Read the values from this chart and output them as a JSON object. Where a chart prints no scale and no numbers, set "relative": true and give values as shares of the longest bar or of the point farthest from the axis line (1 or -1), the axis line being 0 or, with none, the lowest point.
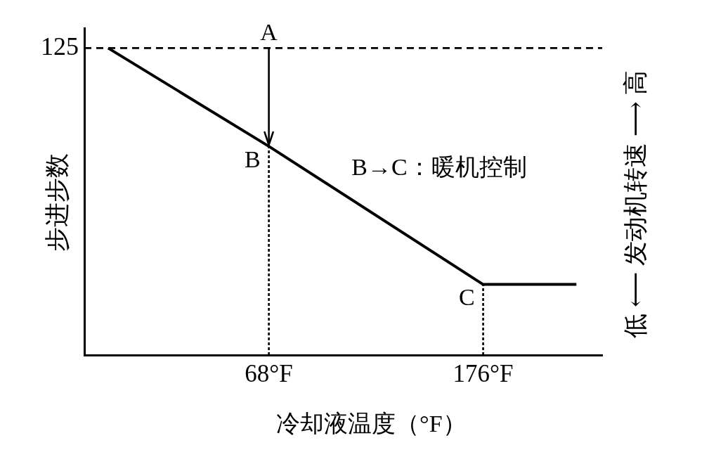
{
  "chart_data": {
    "type": "line",
    "xlabel": "冷却液温度（°F）",
    "ylabel": "步进步数",
    "y2label": "低 ⟵ 发动机转速 ⟶ 高",
    "relative": true,
    "x": [
      -13,
      68,
      176,
      223
    ],
    "series": [
      {
        "color": "#000000",
        "values": [
          1,
          0.68,
          0.23,
          0.23
        ]
      }
    ],
    "xlim": [
      -25,
      236
    ],
    "xticks": [
      {
        "value": 68,
        "label": "68°F"
      },
      {
        "value": 176,
        "label": "176°F"
      }
    ],
    "ref_lines": [
      {
        "axis": "y",
        "value": 1,
        "line_style": "dashed",
        "color": "#000000"
      },
      {
        "axis": "x",
        "value": 68,
        "line_style": "dotted",
        "color": "#000000"
      },
      {
        "axis": "x",
        "value": 176,
        "line_style": "dotted",
        "color": "#000000"
      }
    ],
    "annotations": [
      "125",
      "A",
      "B",
      "C",
      "B→C：暖机控制"
    ],
    "grid": false,
    "legend": false,
    "marker": "none",
    "line_style": "solid"
  }
}
